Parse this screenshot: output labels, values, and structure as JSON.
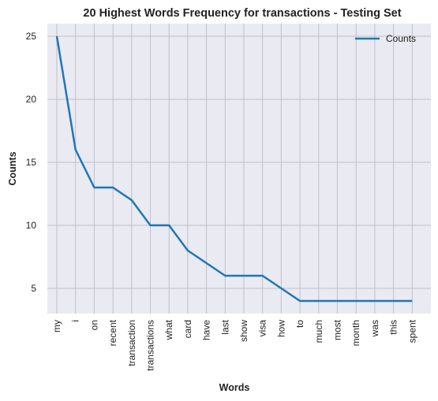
{
  "chart_data": {
    "type": "line",
    "title": "20 Highest Words Frequency for transactions - Testing Set",
    "xlabel": "Words",
    "ylabel": "Counts",
    "categories": [
      "my",
      "i",
      "on",
      "recent",
      "transaction",
      "transactions",
      "what",
      "card",
      "have",
      "last",
      "show",
      "visa",
      "how",
      "to",
      "much",
      "most",
      "month",
      "was",
      "this",
      "spent"
    ],
    "series": [
      {
        "name": "Counts",
        "values": [
          25,
          16,
          13,
          13,
          12,
          10,
          10,
          8,
          7,
          6,
          6,
          6,
          5,
          4,
          4,
          4,
          4,
          4,
          4,
          4
        ],
        "color": "#1f77b4"
      }
    ],
    "ylim": [
      3,
      26
    ],
    "yticks": [
      5,
      10,
      15,
      20,
      25
    ],
    "grid": true,
    "legend_position": "top-right",
    "background_color": "#eaeaf2",
    "grid_color": "#c0c0c8"
  }
}
